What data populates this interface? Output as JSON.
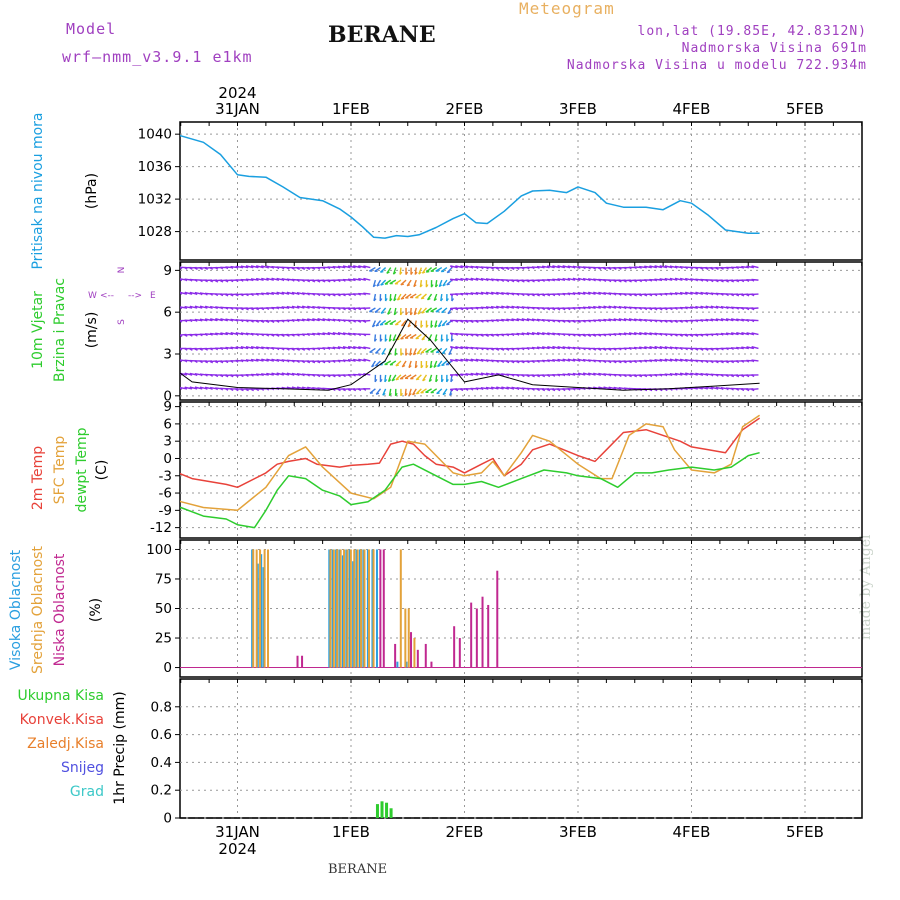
{
  "header": {
    "model_label": "Model",
    "model_name": "wrf–nmm_v3.9.1  e1km",
    "station": "BERANE",
    "meteogram_label": "Meteogram",
    "coords": "lon,lat (19.85E, 42.8312N)",
    "altitude": "Nadmorska Visina 691m",
    "model_altitude": "Nadmorska Visina u modelu 722.934m",
    "credit": "made by Angel",
    "footer_station": "BERANE"
  },
  "colors": {
    "pressure": "#1a9fe0",
    "temp2m": "#e8423a",
    "sfc_temp": "#e3a23a",
    "dewpoint": "#2ecc2e",
    "cloud_high": "#2b9fe0",
    "cloud_mid": "#e3a23a",
    "cloud_low": "#c02890",
    "precip_total": "#2ecc2e",
    "wind_dominant": "#8b2be8",
    "title_purple": "#a040c0",
    "meteogram_orange": "#e8b060"
  },
  "chart_data": [
    {
      "type": "line",
      "panel": "pressure",
      "title_lines": [
        "Pritisak na nivou mora"
      ],
      "unit_label": "(hPa)",
      "x_axis_top": {
        "year": "2024",
        "ticks": [
          "31JAN",
          "1FEB",
          "2FEB",
          "3FEB",
          "4FEB",
          "5FEB"
        ]
      },
      "ylim": [
        1024.5,
        1041.5
      ],
      "yticks": [
        1028,
        1032,
        1036,
        1040
      ],
      "grid": true,
      "x_days": [
        0.0,
        0.05,
        0.1,
        0.2,
        0.35,
        0.5,
        0.7,
        0.85,
        1.0,
        1.1,
        1.25,
        1.4,
        1.55,
        1.75,
        1.9,
        2.0,
        2.1,
        2.2,
        2.3,
        2.4,
        2.5,
        2.6,
        2.75,
        2.9,
        3.0,
        3.1,
        3.2,
        3.35,
        3.5,
        3.6,
        3.75,
        3.9,
        4.0,
        4.15,
        4.25,
        4.4,
        4.5,
        4.6,
        4.75,
        4.9,
        5.0,
        5.15,
        5.3,
        5.4,
        5.5,
        5.6
      ],
      "values": [
        1038.2,
        1037.2,
        1037.8,
        1039.2,
        1040.0,
        1039.8,
        1039.0,
        1037.5,
        1035.0,
        1034.8,
        1034.7,
        1033.5,
        1032.2,
        1031.8,
        1030.8,
        1029.8,
        1028.6,
        1027.3,
        1027.2,
        1027.5,
        1027.4,
        1027.6,
        1028.5,
        1029.6,
        1030.2,
        1029.1,
        1029.0,
        1030.5,
        1032.4,
        1033.0,
        1033.1,
        1032.8,
        1033.5,
        1032.8,
        1031.5,
        1031.0,
        1031.0,
        1031.0,
        1030.7,
        1031.8,
        1031.5,
        1030.0,
        1028.2,
        1028.0,
        1027.8,
        1027.8
      ]
    },
    {
      "type": "scatter",
      "panel": "wind",
      "title_lines": [
        "10m Vjetar",
        "Brzina i Pravac"
      ],
      "unit_label": "(m/s)",
      "compass": [
        "N",
        "W",
        "E",
        "S",
        "<--",
        "-->"
      ],
      "ylim": [
        -0.3,
        9.6
      ],
      "yticks": [
        0,
        3,
        6,
        9
      ],
      "grid": true,
      "rows_y": [
        0.5,
        1.5,
        2.5,
        3.4,
        4.4,
        5.4,
        6.3,
        7.3,
        8.3,
        9.2
      ],
      "x_days": [
        0.0,
        0.3,
        0.6,
        1.0,
        1.4,
        1.8,
        2.0,
        2.3,
        2.5,
        2.7,
        3.0,
        3.3,
        3.6,
        4.0,
        4.4,
        4.8,
        5.2,
        5.6
      ],
      "speed_ms": [
        1.5,
        2.8,
        1.0,
        0.6,
        0.5,
        0.4,
        0.8,
        2.5,
        5.5,
        4.0,
        1.0,
        1.5,
        0.8,
        0.6,
        0.4,
        0.5,
        0.7,
        0.9
      ]
    },
    {
      "type": "line",
      "panel": "temperature",
      "title_lines": [
        "2m Temp",
        "SFC Temp",
        "dewpt Temp"
      ],
      "unit_label": "(C)",
      "ylim": [
        -13.8,
        9.8
      ],
      "yticks": [
        -12,
        -9,
        -6,
        -3,
        0,
        3,
        6,
        9
      ],
      "grid": true,
      "series": [
        {
          "name": "2m Temp",
          "x_days": [
            0.0,
            0.05,
            0.15,
            0.25,
            0.35,
            0.6,
            0.9,
            1.0,
            1.25,
            1.35,
            1.45,
            1.6,
            1.7,
            1.9,
            2.0,
            2.15,
            2.25,
            2.35,
            2.45,
            2.55,
            2.65,
            2.75,
            2.9,
            3.0,
            3.15,
            3.25,
            3.35,
            3.5,
            3.6,
            3.75,
            4.0,
            4.15,
            4.25,
            4.4,
            4.6,
            4.75,
            4.9,
            5.0,
            5.15,
            5.3,
            5.45,
            5.6
          ],
          "values": [
            3.0,
            3.2,
            1.5,
            -1.0,
            -1.5,
            -3.5,
            -4.5,
            -5.0,
            -2.5,
            -1.0,
            -0.5,
            0.0,
            -1.0,
            -1.5,
            -1.2,
            -1.0,
            -0.8,
            2.5,
            3.0,
            2.5,
            0.5,
            -1.0,
            -1.5,
            -2.5,
            -1.0,
            0.0,
            -3.0,
            -1.0,
            1.5,
            2.5,
            0.5,
            -0.5,
            1.5,
            4.5,
            5.0,
            4.0,
            3.0,
            2.0,
            1.5,
            1.0,
            5.0,
            7.0
          ]
        },
        {
          "name": "SFC Temp",
          "x_days": [
            0.0,
            0.05,
            0.15,
            0.25,
            0.35,
            0.5,
            0.7,
            1.0,
            1.25,
            1.45,
            1.6,
            1.75,
            2.0,
            2.2,
            2.35,
            2.5,
            2.65,
            2.9,
            3.0,
            3.15,
            3.25,
            3.35,
            3.5,
            3.6,
            3.75,
            4.0,
            4.2,
            4.3,
            4.45,
            4.6,
            4.75,
            4.85,
            5.0,
            5.2,
            5.35,
            5.45,
            5.6
          ],
          "values": [
            3.5,
            3.0,
            0.5,
            -4.0,
            -6.0,
            -7.5,
            -8.5,
            -9.0,
            -5.0,
            0.5,
            2.0,
            -1.5,
            -6.0,
            -7.0,
            -5.0,
            3.0,
            2.5,
            -2.5,
            -3.0,
            -2.5,
            -0.5,
            -3.0,
            1.0,
            4.0,
            3.0,
            -1.0,
            -3.5,
            -3.5,
            4.0,
            6.0,
            5.5,
            1.5,
            -2.0,
            -2.5,
            -1.0,
            5.5,
            7.5
          ]
        },
        {
          "name": "dewpt Temp",
          "x_days": [
            0.0,
            0.05,
            0.15,
            0.25,
            0.35,
            0.5,
            0.7,
            0.9,
            1.0,
            1.15,
            1.25,
            1.35,
            1.45,
            1.6,
            1.75,
            1.9,
            2.0,
            2.15,
            2.3,
            2.45,
            2.55,
            2.7,
            2.9,
            3.0,
            3.15,
            3.3,
            3.5,
            3.7,
            3.9,
            4.0,
            4.2,
            4.35,
            4.5,
            4.65,
            4.8,
            5.0,
            5.2,
            5.35,
            5.5,
            5.6
          ],
          "values": [
            -5.0,
            -4.0,
            -7.0,
            -8.0,
            -9.0,
            -8.5,
            -10.0,
            -10.5,
            -11.5,
            -12.0,
            -9.0,
            -5.5,
            -3.0,
            -3.5,
            -5.5,
            -6.5,
            -8.0,
            -7.5,
            -5.5,
            -1.5,
            -1.0,
            -2.5,
            -4.5,
            -4.5,
            -4.0,
            -5.0,
            -3.5,
            -2.0,
            -2.5,
            -3.0,
            -3.5,
            -5.0,
            -2.5,
            -2.5,
            -2.0,
            -1.5,
            -2.0,
            -1.5,
            0.5,
            1.0
          ]
        }
      ]
    },
    {
      "type": "bar",
      "panel": "clouds",
      "title_lines": [
        "Visoka Oblacnost",
        "Srednja Oblacnost",
        "Niska Oblacnost"
      ],
      "unit_label": "(%)",
      "ylim": [
        -8,
        108
      ],
      "yticks": [
        0,
        25,
        50,
        75,
        100
      ],
      "grid": true,
      "series": [
        {
          "name": "Visoka Oblacnost",
          "x_days": [
            1.12,
            1.17,
            1.2,
            1.22,
            1.8,
            1.83,
            1.86,
            1.89,
            1.92,
            1.95,
            1.98,
            2.01,
            2.04,
            2.07,
            2.1,
            2.14,
            2.18,
            2.22,
            2.4,
            2.48
          ],
          "values": [
            100,
            88,
            96,
            85,
            100,
            100,
            100,
            100,
            95,
            100,
            100,
            90,
            100,
            100,
            100,
            100,
            100,
            100,
            5,
            5
          ]
        },
        {
          "name": "Srednja Oblacnost",
          "x_days": [
            1.13,
            1.16,
            1.19,
            1.23,
            1.26,
            1.81,
            1.84,
            1.87,
            1.9,
            1.93,
            1.96,
            1.99,
            2.02,
            2.05,
            2.08,
            2.11,
            2.15,
            2.19,
            2.43,
            2.47,
            2.5,
            2.55
          ],
          "values": [
            100,
            100,
            100,
            100,
            100,
            100,
            100,
            100,
            100,
            100,
            100,
            100,
            100,
            100,
            100,
            100,
            100,
            100,
            100,
            50,
            50,
            25
          ]
        },
        {
          "name": "Niska Oblacnost",
          "x_days": [
            1.52,
            1.56,
            2.25,
            2.28,
            2.38,
            2.52,
            2.58,
            2.65,
            2.7,
            2.9,
            2.95,
            3.05,
            3.1,
            3.15,
            3.2,
            3.28
          ],
          "values": [
            10,
            10,
            100,
            100,
            20,
            30,
            15,
            20,
            5,
            35,
            25,
            55,
            50,
            60,
            53,
            82
          ]
        }
      ]
    },
    {
      "type": "bar",
      "panel": "precipitation",
      "title_lines": [
        "1hr Precip (mm)"
      ],
      "legend": [
        "Ukupna Kisa",
        "Konvek.Kisa",
        "Zaledj.Kisa",
        "Snijeg",
        "Grad"
      ],
      "legend_colors": [
        "#2ecc2e",
        "#e8423a",
        "#e87f2a",
        "#5050e0",
        "#3cc8c8"
      ],
      "x_axis_bottom": {
        "year": "2024",
        "ticks": [
          "31JAN",
          "1FEB",
          "2FEB",
          "3FEB",
          "4FEB",
          "5FEB"
        ]
      },
      "ylim": [
        0,
        1.0
      ],
      "yticks": [
        0,
        0.2,
        0.4,
        0.6,
        0.8
      ],
      "grid": true,
      "x_days": [
        2.22,
        2.26,
        2.3,
        2.34
      ],
      "values": [
        0.1,
        0.12,
        0.11,
        0.07
      ]
    }
  ]
}
